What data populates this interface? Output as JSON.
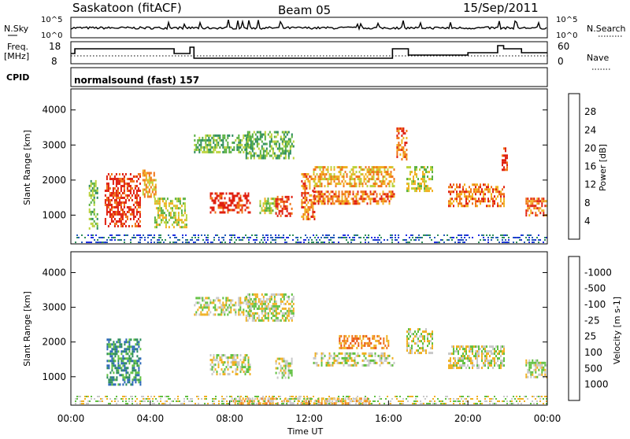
{
  "header": {
    "station": "Saskatoon (fitACF)",
    "beam": "Beam 05",
    "date": "15/Sep/2011"
  },
  "top_panels": {
    "nsky_label": "N.Sky",
    "nsky_tick_top": "10^5",
    "nsky_tick_bottom": "10^0",
    "nsearch_label": "N.Search",
    "nsearch_tick_top": "10^5",
    "nsearch_tick_bottom": "10^0",
    "freq_label_line1": "Freq.",
    "freq_label_line2": "[MHz]",
    "freq_tick_top": "18",
    "freq_tick_bottom": "8",
    "nave_label": "Nave",
    "nave_tick_top": "60",
    "nave_tick_bottom": "0",
    "cpid_label": "CPID",
    "cpid_value": "normalsound (fast) 157"
  },
  "chart_data": [
    {
      "type": "heatmap",
      "title": "",
      "ylabel": "Slant Range [km]",
      "xlabel": "Time UT",
      "x_range_hours": [
        0,
        24
      ],
      "ylim": [
        180,
        4600
      ],
      "yticks": [
        "1000",
        "2000",
        "3000",
        "4000"
      ],
      "colorbar": {
        "label": "Power [dB]",
        "ticks": [
          "4",
          "8",
          "12",
          "16",
          "20",
          "24",
          "28"
        ],
        "colors": [
          "#1f2fe0",
          "#245ab8",
          "#2c8d5a",
          "#58b040",
          "#bcd23a",
          "#f0b020",
          "#f07418",
          "#e02010"
        ]
      },
      "echo_regions": [
        {
          "t": [
            0.9,
            1.3
          ],
          "r": [
            600,
            2000
          ],
          "level": 3
        },
        {
          "t": [
            1.7,
            3.5
          ],
          "r": [
            700,
            2200
          ],
          "level": 7
        },
        {
          "t": [
            3.6,
            4.3
          ],
          "r": [
            1500,
            2300
          ],
          "level": 5
        },
        {
          "t": [
            4.2,
            5.8
          ],
          "r": [
            650,
            1500
          ],
          "level": 4
        },
        {
          "t": [
            6.2,
            9.0
          ],
          "r": [
            2800,
            3300
          ],
          "level": 3
        },
        {
          "t": [
            8.8,
            11.2
          ],
          "r": [
            2650,
            3400
          ],
          "level": 3
        },
        {
          "t": [
            7.0,
            9.0
          ],
          "r": [
            1100,
            1650
          ],
          "level": 7
        },
        {
          "t": [
            9.5,
            10.3
          ],
          "r": [
            1050,
            1500
          ],
          "level": 4
        },
        {
          "t": [
            10.3,
            11.1
          ],
          "r": [
            950,
            1550
          ],
          "level": 7
        },
        {
          "t": [
            11.6,
            12.3
          ],
          "r": [
            900,
            2200
          ],
          "level": 6
        },
        {
          "t": [
            12.2,
            16.3
          ],
          "r": [
            1350,
            1700
          ],
          "level": 6
        },
        {
          "t": [
            12.2,
            16.3
          ],
          "r": [
            1800,
            2400
          ],
          "level": 5
        },
        {
          "t": [
            16.4,
            16.9
          ],
          "r": [
            2600,
            3500
          ],
          "level": 6
        },
        {
          "t": [
            16.9,
            18.2
          ],
          "r": [
            1700,
            2400
          ],
          "level": 4
        },
        {
          "t": [
            19.0,
            21.8
          ],
          "r": [
            1250,
            1900
          ],
          "level": 6
        },
        {
          "t": [
            21.7,
            22.0
          ],
          "r": [
            2300,
            3000
          ],
          "level": 7
        },
        {
          "t": [
            22.9,
            24.0
          ],
          "r": [
            1000,
            1500
          ],
          "level": 6
        }
      ]
    },
    {
      "type": "heatmap",
      "title": "",
      "ylabel": "Slant Range [km]",
      "xlabel": "Time UT",
      "x_range_hours": [
        0,
        24
      ],
      "ylim": [
        180,
        4600
      ],
      "yticks": [
        "1000",
        "2000",
        "3000",
        "4000"
      ],
      "colorbar": {
        "label": "Velocity [m s-1]",
        "ticks": [
          "1000",
          "500",
          "100",
          "25",
          "-25",
          "-100",
          "-500",
          "-1000"
        ],
        "colors": [
          "#1f2fe0",
          "#2a66b8",
          "#2c8d5a",
          "#60c040",
          "#c8c8c8",
          "#f0b020",
          "#f07418",
          "#e85010",
          "#e02010"
        ]
      },
      "echo_regions": [
        {
          "t": [
            1.8,
            3.5
          ],
          "r": [
            800,
            2100
          ],
          "level": 2
        },
        {
          "t": [
            6.2,
            9.0
          ],
          "r": [
            2800,
            3300
          ],
          "level": 4
        },
        {
          "t": [
            8.8,
            11.2
          ],
          "r": [
            2650,
            3400
          ],
          "level": 4
        },
        {
          "t": [
            7.0,
            9.0
          ],
          "r": [
            1100,
            1650
          ],
          "level": 4
        },
        {
          "t": [
            10.3,
            11.1
          ],
          "r": [
            950,
            1550
          ],
          "level": 4
        },
        {
          "t": [
            12.2,
            16.3
          ],
          "r": [
            1350,
            1700
          ],
          "level": 4
        },
        {
          "t": [
            13.5,
            16.0
          ],
          "r": [
            1800,
            2200
          ],
          "level": 6
        },
        {
          "t": [
            16.9,
            18.2
          ],
          "r": [
            1700,
            2400
          ],
          "level": 4
        },
        {
          "t": [
            19.0,
            21.8
          ],
          "r": [
            1250,
            1900
          ],
          "level": 4
        },
        {
          "t": [
            22.9,
            24.0
          ],
          "r": [
            1000,
            1500
          ],
          "level": 4
        },
        {
          "t": [
            8.0,
            15.0
          ],
          "r": [
            200,
            400
          ],
          "level": 5
        }
      ]
    }
  ],
  "time_axis": {
    "label": "Time UT",
    "ticks": [
      "00:00",
      "04:00",
      "08:00",
      "12:00",
      "16:00",
      "20:00",
      "00:00"
    ]
  }
}
